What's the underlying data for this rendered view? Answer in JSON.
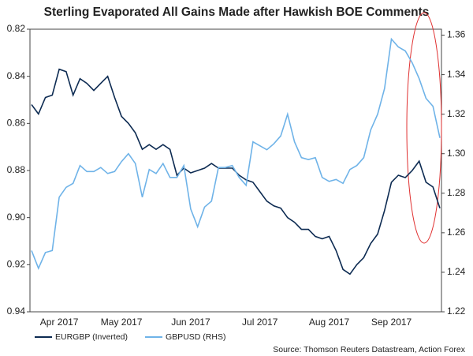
{
  "chart_data": {
    "type": "line",
    "title": "Sterling Evaporated All Gains Made after Hawkish BOE Comments",
    "source": "Source: Thomson Reuters Datastream, Action Forex",
    "categories": [
      null,
      null,
      null,
      null,
      "Apr 2017",
      null,
      null,
      null,
      null,
      null,
      null,
      null,
      null,
      "May 2017",
      null,
      null,
      null,
      null,
      null,
      null,
      null,
      null,
      null,
      "Jun 2017",
      null,
      null,
      null,
      null,
      null,
      null,
      null,
      null,
      null,
      "Jul 2017",
      null,
      null,
      null,
      null,
      null,
      null,
      null,
      null,
      null,
      "Aug 2017",
      null,
      null,
      null,
      null,
      null,
      null,
      null,
      null,
      "Sep 2017",
      null,
      null,
      null,
      null,
      null,
      null,
      null
    ],
    "series": [
      {
        "name": "EURGBP (Inverted)",
        "color": "#0d2b52",
        "axis": "y",
        "values": [
          0.852,
          0.856,
          0.849,
          0.848,
          0.837,
          0.838,
          0.848,
          0.841,
          0.843,
          0.846,
          0.843,
          0.84,
          0.849,
          0.857,
          0.86,
          0.864,
          0.871,
          0.869,
          0.871,
          0.869,
          0.871,
          0.882,
          0.879,
          0.881,
          0.88,
          0.879,
          0.877,
          0.879,
          0.879,
          0.879,
          0.882,
          0.884,
          0.885,
          0.889,
          0.893,
          0.895,
          0.896,
          0.9,
          0.902,
          0.905,
          0.905,
          0.908,
          0.909,
          0.908,
          0.914,
          0.922,
          0.924,
          0.92,
          0.917,
          0.911,
          0.907,
          0.897,
          0.885,
          0.882,
          0.883,
          0.88,
          0.876,
          0.885,
          0.887,
          0.896
        ]
      },
      {
        "name": "GBPUSD (RHS)",
        "color": "#6fb3e8",
        "axis": "y2",
        "values": [
          1.251,
          1.242,
          1.25,
          1.251,
          1.278,
          1.283,
          1.285,
          1.294,
          1.291,
          1.291,
          1.293,
          1.29,
          1.291,
          1.296,
          1.3,
          1.295,
          1.278,
          1.292,
          1.29,
          1.295,
          1.288,
          1.288,
          1.294,
          1.272,
          1.263,
          1.273,
          1.276,
          1.293,
          1.293,
          1.294,
          1.288,
          1.284,
          1.306,
          1.304,
          1.302,
          1.305,
          1.309,
          1.32,
          1.306,
          1.298,
          1.297,
          1.298,
          1.288,
          1.286,
          1.287,
          1.285,
          1.292,
          1.294,
          1.298,
          1.312,
          1.32,
          1.333,
          1.358,
          1.354,
          1.352,
          1.346,
          1.338,
          1.328,
          1.324,
          1.308
        ]
      }
    ],
    "ylim": [
      0.94,
      0.82
    ],
    "yticks": [
      0.82,
      0.84,
      0.86,
      0.88,
      {
        "value": 0.9,
        "label": "0.90"
      },
      0.92,
      0.94
    ],
    "y2lim": [
      1.22,
      1.363
    ],
    "y2ticks": [
      1.22,
      1.24,
      1.26,
      1.28,
      {
        "value": 1.3,
        "label": "1.30"
      },
      1.32,
      1.34,
      1.36
    ],
    "legend": "bottom-left"
  }
}
